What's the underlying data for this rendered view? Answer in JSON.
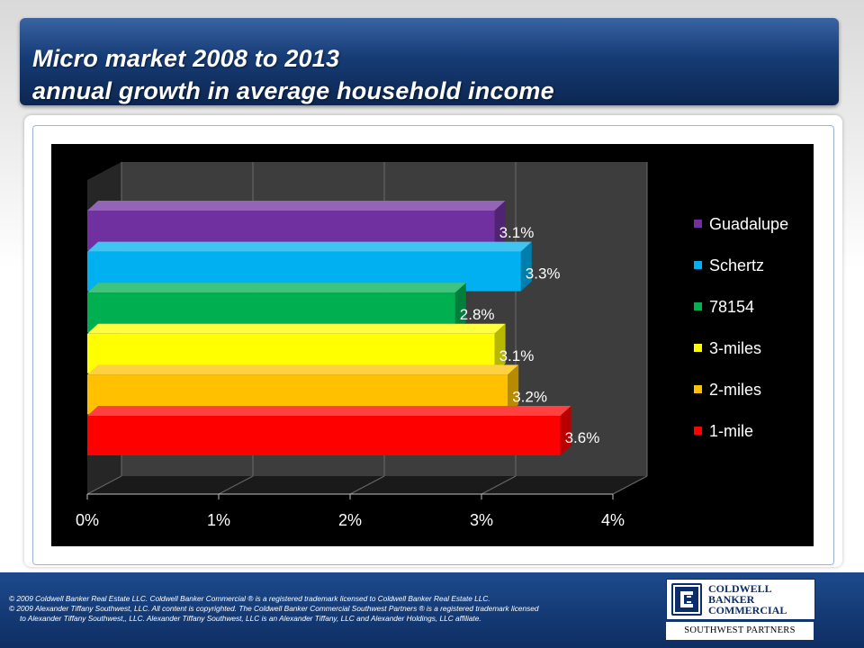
{
  "title": {
    "line1": "Micro market 2008 to 2013",
    "line2": "annual growth in average household income"
  },
  "chart_data": {
    "type": "bar",
    "orientation": "horizontal",
    "categories": [
      "Guadalupe",
      "Schertz",
      "78154",
      "3-miles",
      "2-miles",
      "1-mile"
    ],
    "values": [
      3.1,
      3.3,
      2.8,
      3.1,
      3.2,
      3.6
    ],
    "labels": [
      "3.1%",
      "3.3%",
      "2.8%",
      "3.1%",
      "3.2%",
      "3.6%"
    ],
    "colors": [
      "#7030a0",
      "#00b0f0",
      "#00b050",
      "#ffff00",
      "#ffc000",
      "#ff0000"
    ],
    "xlim": [
      0,
      4
    ],
    "xticks": [
      "0%",
      "1%",
      "2%",
      "3%",
      "4%"
    ],
    "legend_position": "right",
    "title": "",
    "xlabel": "",
    "ylabel": ""
  },
  "footer": {
    "line1": "©  2009 Coldwell Banker Real Estate LLC. Coldwell Banker Commercial ® is a registered trademark licensed to Coldwell Banker Real Estate LLC.",
    "line2": "© 2009 Alexander Tiffany Southwest, LLC. All content is copyrighted. The Coldwell Banker Commercial Southwest Partners ® is a registered trademark licensed",
    "line3": "to Alexander Tiffany Southwest,, LLC.  Alexander Tiffany Southwest, LLC is an Alexander Tiffany, LLC and Alexander Holdings, LLC affiliate."
  },
  "logo": {
    "line1": "COLDWELL",
    "line2": "BANKER",
    "line3": "COMMERCIAL",
    "subtitle": "SOUTHWEST PARTNERS"
  }
}
